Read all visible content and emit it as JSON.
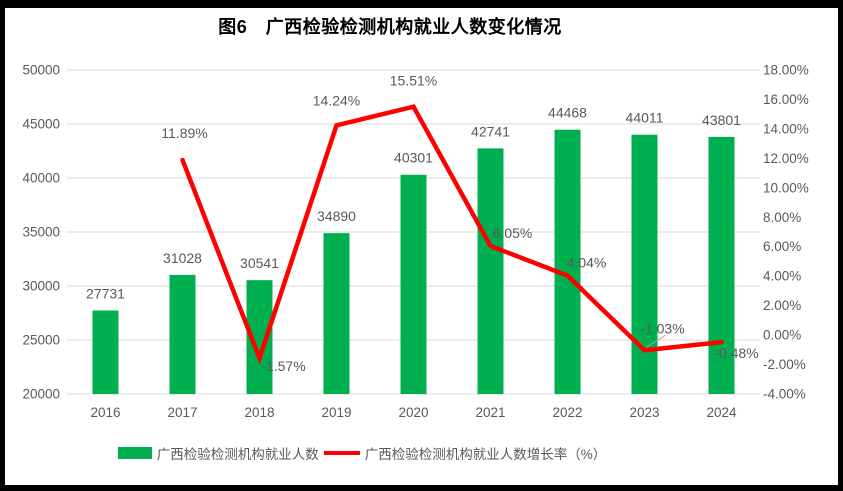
{
  "title": "图6　广西检验检测机构就业人数变化情况",
  "chart_data": {
    "type": "bar+line combo",
    "title": "图6　广西检验检测机构就业人数变化情况",
    "categories": [
      "2016",
      "2017",
      "2018",
      "2019",
      "2020",
      "2021",
      "2022",
      "2023",
      "2024"
    ],
    "series": [
      {
        "name": "广西检验检测机构就业人数",
        "type": "bar",
        "axis": "left",
        "color": "#00B050",
        "values": [
          27731,
          31028,
          30541,
          34890,
          40301,
          42741,
          44468,
          44011,
          43801
        ],
        "point_labels": [
          "27731",
          "31028",
          "30541",
          "34890",
          "40301",
          "42741",
          "44468",
          "44011",
          "43801"
        ]
      },
      {
        "name": "广西检验检测机构就业人数增长率（%）",
        "type": "line",
        "axis": "right",
        "color": "#FF0000",
        "values": [
          null,
          11.89,
          -1.57,
          14.24,
          15.51,
          6.05,
          4.04,
          -1.03,
          -0.48
        ],
        "point_labels": [
          null,
          "11.89%",
          "-1.57%",
          "14.24%",
          "15.51%",
          "6.05%",
          "4.04%",
          "-1.03%",
          "-0.48%"
        ]
      }
    ],
    "left_axis": {
      "min": 20000,
      "max": 50000,
      "step": 5000,
      "tick_labels": [
        "50000",
        "45000",
        "40000",
        "35000",
        "30000",
        "25000",
        "20000"
      ]
    },
    "right_axis": {
      "min": -4,
      "max": 18,
      "step": 2,
      "tick_labels": [
        "18.00%",
        "16.00%",
        "14.00%",
        "12.00%",
        "10.00%",
        "8.00%",
        "6.00%",
        "4.00%",
        "2.00%",
        "0.00%",
        "-2.00%",
        "-4.00%"
      ]
    },
    "grid": true,
    "legend_position": "bottom"
  },
  "legend": {
    "items": [
      {
        "label": "广西检验检测机构就业人数",
        "color": "#00B050",
        "shape": "rect"
      },
      {
        "label": "广西检验检测机构就业人数增长率（%）",
        "color": "#FF0000",
        "shape": "line"
      }
    ]
  },
  "colors": {
    "bar": "#00B050",
    "line": "#FF0000",
    "gridline": "#D9D9D9",
    "axis_text": "#595959",
    "data_label": "#595959",
    "leader_line": "#A6A6A6",
    "title_text": "#000000",
    "frame": "#000000",
    "background": "#FFFFFF"
  }
}
